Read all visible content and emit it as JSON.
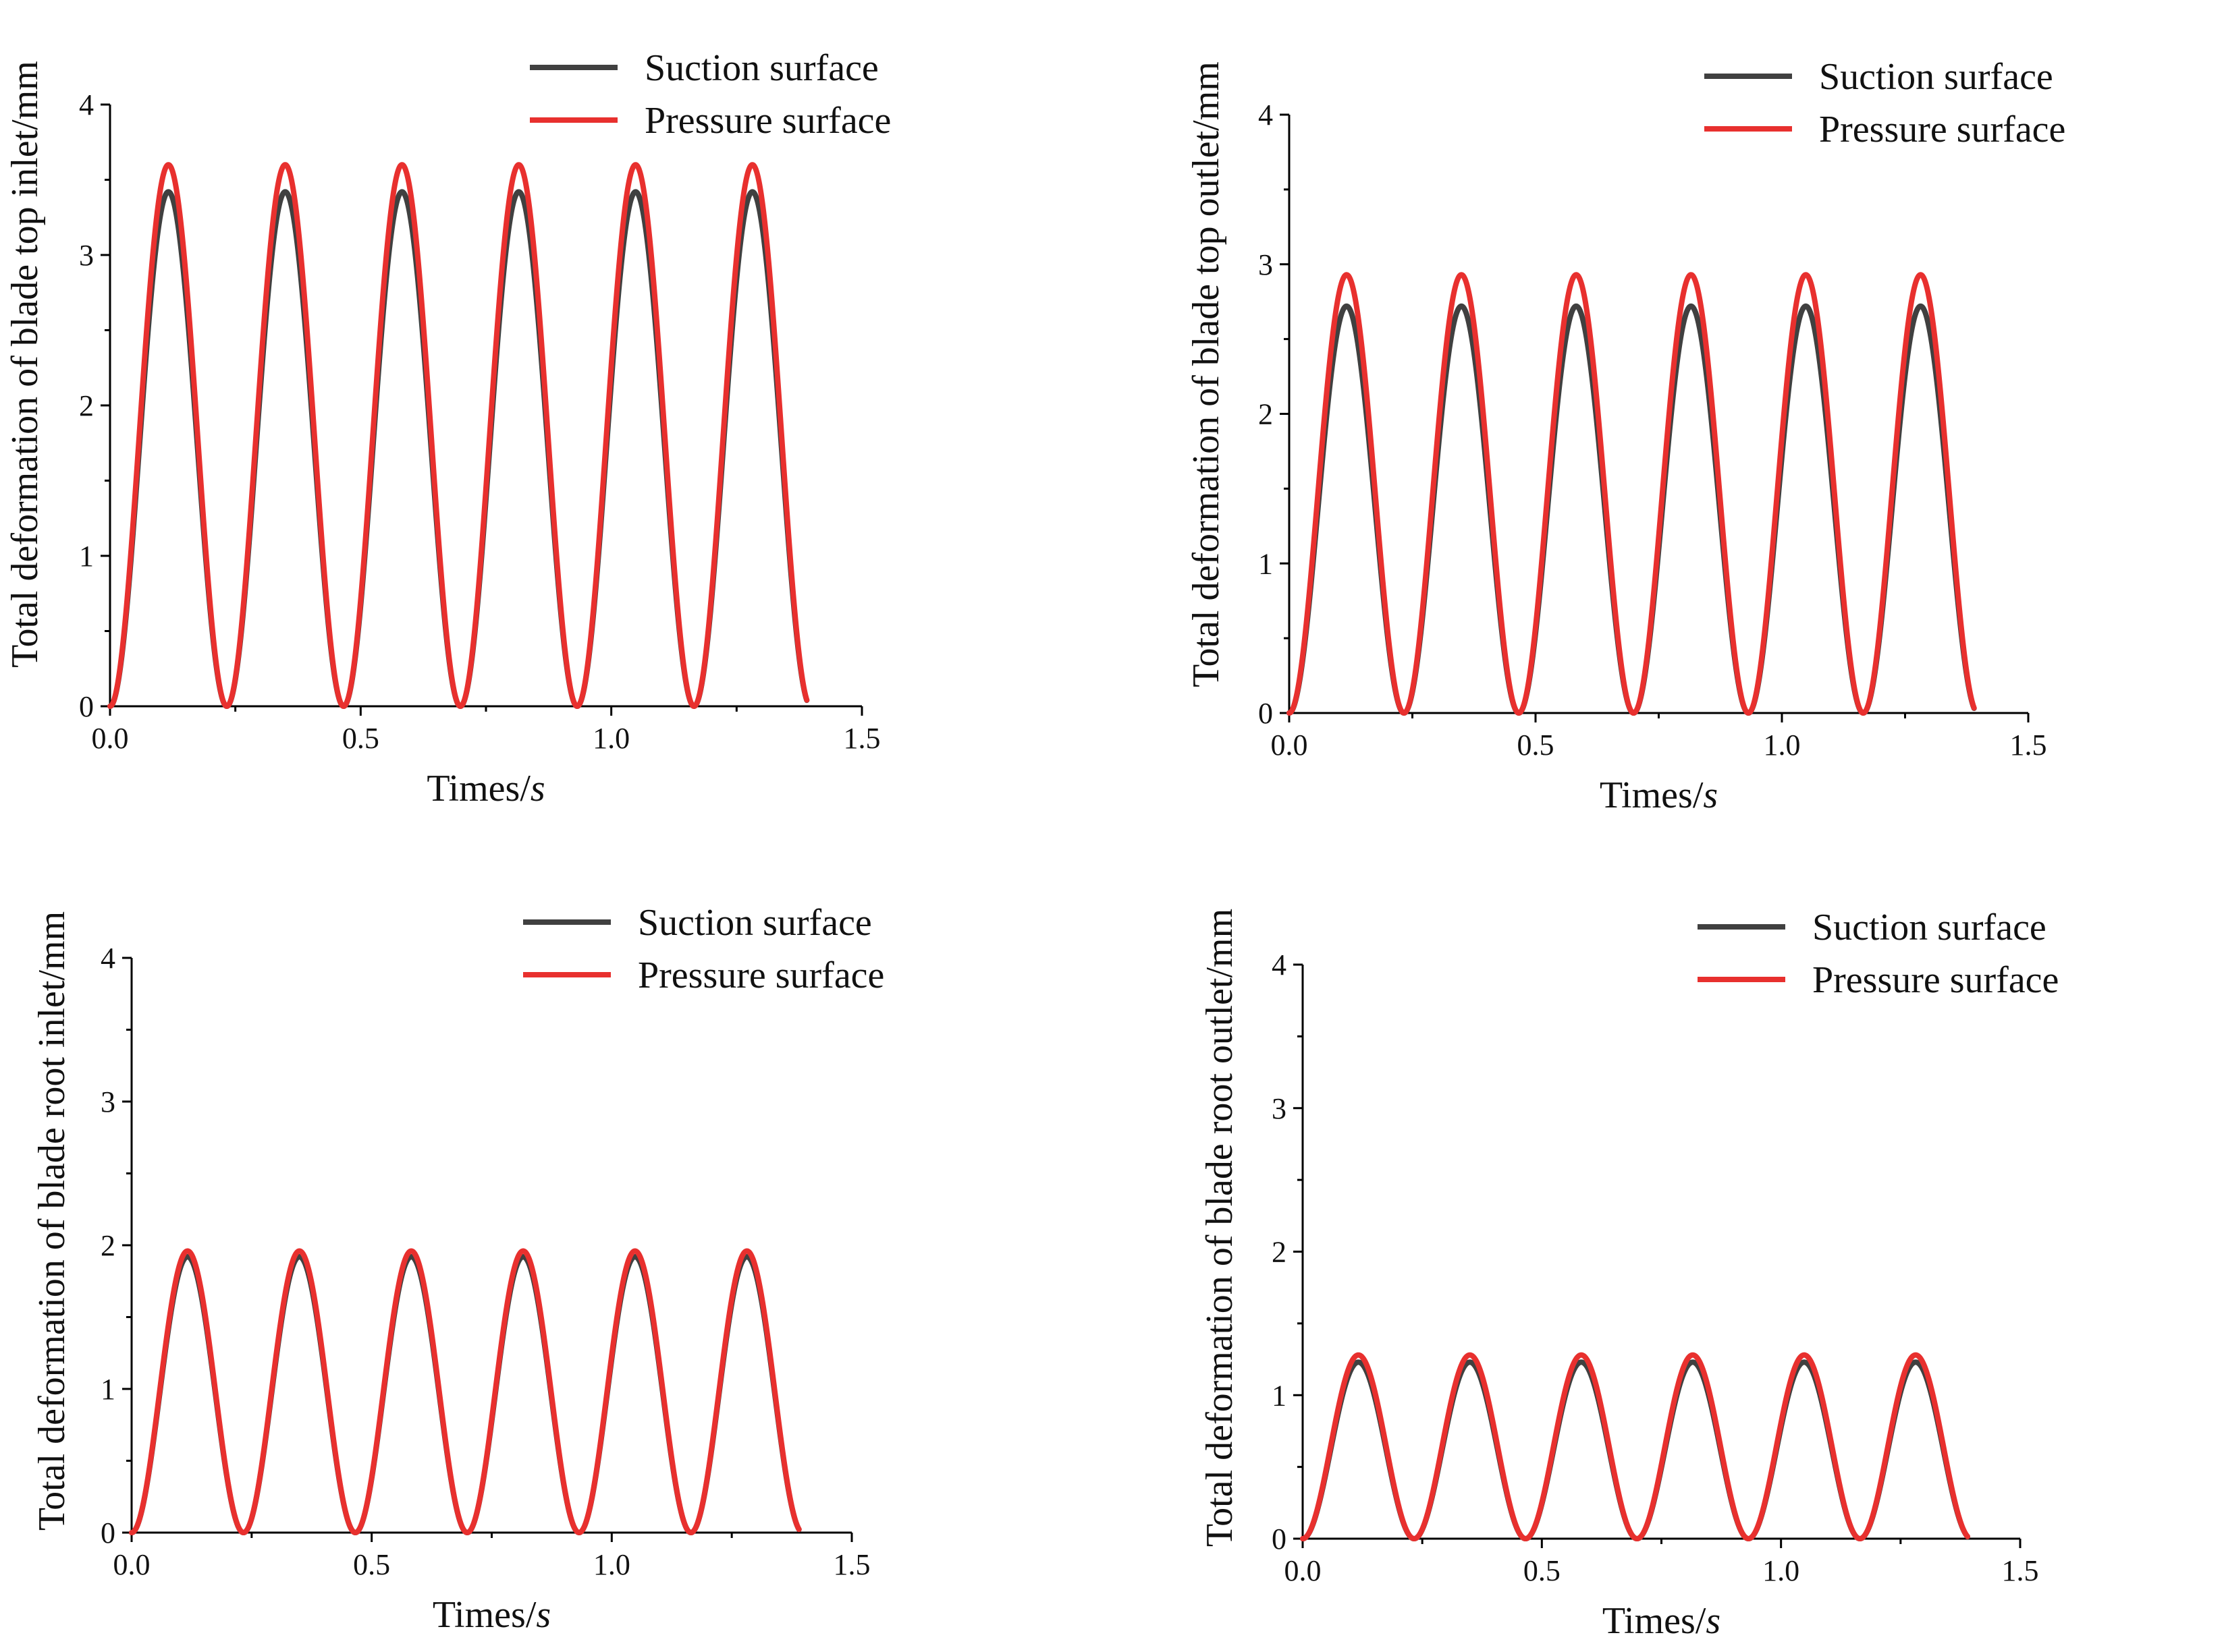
{
  "chart_data": [
    {
      "type": "line",
      "xlabel": "Times",
      "xunit": "s",
      "ylabel": "Total deformation of blade top inlet/mm",
      "xlim": [
        0.0,
        1.5
      ],
      "ylim": [
        0,
        4
      ],
      "xticks": [
        "0.0",
        "0.5",
        "1.0",
        "1.5"
      ],
      "yticks": [
        "0",
        "1",
        "2",
        "3",
        "4"
      ],
      "legend_position": "top-right",
      "series": [
        {
          "name": "Suction surface",
          "color": "#404040",
          "period": 0.233,
          "peak": 3.42,
          "t_end": 1.39
        },
        {
          "name": "Pressure surface",
          "color": "#e8302e",
          "period": 0.233,
          "peak": 3.6,
          "t_end": 1.39
        }
      ]
    },
    {
      "type": "line",
      "xlabel": "Times",
      "xunit": "s",
      "ylabel": "Total deformation of blade top outlet/mm",
      "xlim": [
        0.0,
        1.5
      ],
      "ylim": [
        0,
        4
      ],
      "xticks": [
        "0.0",
        "0.5",
        "1.0",
        "1.5"
      ],
      "yticks": [
        "0",
        "1",
        "2",
        "3",
        "4"
      ],
      "legend_position": "top-right",
      "series": [
        {
          "name": "Suction surface",
          "color": "#404040",
          "period": 0.233,
          "peak": 2.72,
          "t_end": 1.39
        },
        {
          "name": "Pressure surface",
          "color": "#e8302e",
          "period": 0.233,
          "peak": 2.93,
          "t_end": 1.39
        }
      ]
    },
    {
      "type": "line",
      "xlabel": "Times",
      "xunit": "s",
      "ylabel": "Total deformation of blade root inlet/mm",
      "xlim": [
        0.0,
        1.5
      ],
      "ylim": [
        0,
        4
      ],
      "xticks": [
        "0.0",
        "0.5",
        "1.0",
        "1.5"
      ],
      "yticks": [
        "0",
        "1",
        "2",
        "3",
        "4"
      ],
      "legend_position": "top-right",
      "series": [
        {
          "name": "Suction surface",
          "color": "#404040",
          "period": 0.233,
          "peak": 1.92,
          "t_end": 1.39
        },
        {
          "name": "Pressure surface",
          "color": "#e8302e",
          "period": 0.233,
          "peak": 1.96,
          "t_end": 1.39
        }
      ]
    },
    {
      "type": "line",
      "xlabel": "Times",
      "xunit": "s",
      "ylabel": "Total deformation of blade root outlet/mm",
      "xlim": [
        0.0,
        1.5
      ],
      "ylim": [
        0,
        4
      ],
      "xticks": [
        "0.0",
        "0.5",
        "1.0",
        "1.5"
      ],
      "yticks": [
        "0",
        "1",
        "2",
        "3",
        "4"
      ],
      "legend_position": "top-right",
      "series": [
        {
          "name": "Suction surface",
          "color": "#404040",
          "period": 0.233,
          "peak": 1.23,
          "t_end": 1.39
        },
        {
          "name": "Pressure surface",
          "color": "#e8302e",
          "period": 0.233,
          "peak": 1.28,
          "t_end": 1.39
        }
      ]
    }
  ]
}
